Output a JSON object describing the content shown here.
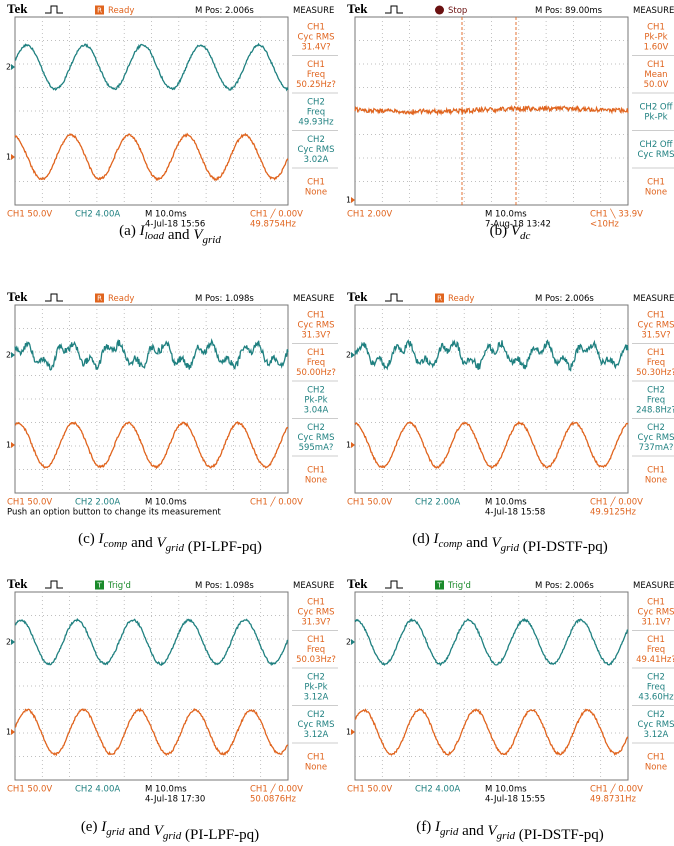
{
  "channel_colors": {
    "ch1": "#e0641e",
    "ch2": "#1f8080"
  },
  "panels": [
    {
      "header": {
        "brand": "Tek",
        "badge": "R",
        "status": "Ready",
        "status_color": "#e0641e",
        "position": "M Pos: 2.006s"
      },
      "markers": [
        "2",
        "1"
      ],
      "measure": {
        "title": "MEASURE",
        "items": [
          {
            "color": "#e0641e",
            "lines": [
              "CH1",
              "Cyc RMS",
              "31.4V?"
            ]
          },
          {
            "color": "#e0641e",
            "lines": [
              "CH1",
              "Freq",
              "50.25Hz?"
            ]
          },
          {
            "color": "#1f8080",
            "lines": [
              "CH2",
              "Freq",
              "49.93Hz"
            ]
          },
          {
            "color": "#1f8080",
            "lines": [
              "CH2",
              "Cyc RMS",
              "3.02A"
            ]
          },
          {
            "color": "#e0641e",
            "lines": [
              "CH1",
              "None"
            ]
          }
        ]
      },
      "footer": {
        "ch1": "CH1  50.0V",
        "ch2": "CH2  4.00A",
        "timebase": "M 10.0ms",
        "date": "4-Jul-18 15:56",
        "trigger": "CH1 ╱ 0.00V",
        "frequency": "49.8754Hz"
      },
      "caption": {
        "label": "(a)",
        "symbols": [
          {
            "letter": "I",
            "sub": "load"
          },
          {
            "letter": "V",
            "sub": "grid"
          }
        ],
        "joiner": "and"
      }
    },
    {
      "header": {
        "brand": "Tek",
        "status": "Stop",
        "status_color": "#6a1010",
        "position": "M Pos: 89.00ms"
      },
      "markers": [
        "1"
      ],
      "measure": {
        "title": "MEASURE",
        "items": [
          {
            "color": "#e0641e",
            "lines": [
              "CH1",
              "Pk-Pk",
              "1.60V"
            ]
          },
          {
            "color": "#e0641e",
            "lines": [
              "CH1",
              "Mean",
              "50.0V"
            ]
          },
          {
            "color": "#1f8080",
            "lines": [
              "CH2 Off",
              "Pk-Pk"
            ]
          },
          {
            "color": "#1f8080",
            "lines": [
              "CH2 Off",
              "Cyc RMS"
            ]
          },
          {
            "color": "#e0641e",
            "lines": [
              "CH1",
              "None"
            ]
          }
        ]
      },
      "footer": {
        "ch1": "CH1  2.00V",
        "timebase": "M 10.0ms",
        "date": "7-Aug-18 13:42",
        "trigger": "CH1 ╲ 33.9V",
        "frequency": "<10Hz"
      },
      "caption": {
        "label": "(b)",
        "symbols": [
          {
            "letter": "V",
            "sub": "dc"
          }
        ]
      }
    },
    {
      "header": {
        "brand": "Tek",
        "badge": "R",
        "status": "Ready",
        "status_color": "#e0641e",
        "position": "M Pos: 1.098s"
      },
      "markers": [
        "2",
        "1"
      ],
      "measure": {
        "title": "MEASURE",
        "items": [
          {
            "color": "#e0641e",
            "lines": [
              "CH1",
              "Cyc RMS",
              "31.3V?"
            ]
          },
          {
            "color": "#e0641e",
            "lines": [
              "CH1",
              "Freq",
              "50.00Hz?"
            ]
          },
          {
            "color": "#1f8080",
            "lines": [
              "CH2",
              "Pk-Pk",
              "3.04A"
            ]
          },
          {
            "color": "#1f8080",
            "lines": [
              "CH2",
              "Cyc RMS",
              "595mA?"
            ]
          },
          {
            "color": "#e0641e",
            "lines": [
              "CH1",
              "None"
            ]
          }
        ]
      },
      "footer": {
        "ch1": "CH1  50.0V",
        "ch2": "CH2  2.00A",
        "timebase": "M 10.0ms",
        "trigger": "CH1 ╱ 0.00V",
        "note": "Push an option button to change its measurement"
      },
      "caption": {
        "label": "(c)",
        "symbols": [
          {
            "letter": "I",
            "sub": "comp"
          },
          {
            "letter": "V",
            "sub": "grid"
          }
        ],
        "joiner": "and",
        "note": "(PI-LPF-pq)"
      }
    },
    {
      "header": {
        "brand": "Tek",
        "badge": "R",
        "status": "Ready",
        "status_color": "#e0641e",
        "position": "M Pos: 2.006s"
      },
      "markers": [
        "2",
        "1"
      ],
      "measure": {
        "title": "MEASURE",
        "items": [
          {
            "color": "#e0641e",
            "lines": [
              "CH1",
              "Cyc RMS",
              "31.5V?"
            ]
          },
          {
            "color": "#e0641e",
            "lines": [
              "CH1",
              "Freq",
              "50.30Hz?"
            ]
          },
          {
            "color": "#1f8080",
            "lines": [
              "CH2",
              "Freq",
              "248.8Hz?"
            ]
          },
          {
            "color": "#1f8080",
            "lines": [
              "CH2",
              "Cyc RMS",
              "737mA?"
            ]
          },
          {
            "color": "#e0641e",
            "lines": [
              "CH1",
              "None"
            ]
          }
        ]
      },
      "footer": {
        "ch1": "CH1  50.0V",
        "ch2": "CH2  2.00A",
        "timebase": "M 10.0ms",
        "date": "4-Jul-18 15:58",
        "trigger": "CH1 ╱ 0.00V",
        "frequency": "49.9125Hz"
      },
      "caption": {
        "label": "(d)",
        "symbols": [
          {
            "letter": "I",
            "sub": "comp"
          },
          {
            "letter": "V",
            "sub": "grid"
          }
        ],
        "joiner": "and",
        "note": "(PI-DSTF-pq)"
      }
    },
    {
      "header": {
        "brand": "Tek",
        "badge": "T",
        "status": "Trig'd",
        "status_color": "#1a8a2a",
        "position": "M Pos: 1.098s"
      },
      "markers": [
        "2",
        "1"
      ],
      "measure": {
        "title": "MEASURE",
        "items": [
          {
            "color": "#e0641e",
            "lines": [
              "CH1",
              "Cyc RMS",
              "31.3V?"
            ]
          },
          {
            "color": "#e0641e",
            "lines": [
              "CH1",
              "Freq",
              "50.03Hz?"
            ]
          },
          {
            "color": "#1f8080",
            "lines": [
              "CH2",
              "Pk-Pk",
              "3.12A"
            ]
          },
          {
            "color": "#1f8080",
            "lines": [
              "CH2",
              "Cyc RMS",
              "3.12A"
            ]
          },
          {
            "color": "#e0641e",
            "lines": [
              "CH1",
              "None"
            ]
          }
        ]
      },
      "footer": {
        "ch1": "CH1  50.0V",
        "ch2": "CH2  4.00A",
        "timebase": "M 10.0ms",
        "date": "4-Jul-18 17:30",
        "trigger": "CH1 ╱ 0.00V",
        "frequency": "50.0876Hz"
      },
      "caption": {
        "label": "(e)",
        "symbols": [
          {
            "letter": "I",
            "sub": "grid"
          },
          {
            "letter": "V",
            "sub": "grid"
          }
        ],
        "joiner": "and",
        "note": "(PI-LPF-pq)"
      }
    },
    {
      "header": {
        "brand": "Tek",
        "badge": "T",
        "status": "Trig'd",
        "status_color": "#1a8a2a",
        "position": "M Pos: 2.006s"
      },
      "markers": [
        "2",
        "1"
      ],
      "measure": {
        "title": "MEASURE",
        "items": [
          {
            "color": "#e0641e",
            "lines": [
              "CH1",
              "Cyc RMS",
              "31.1V?"
            ]
          },
          {
            "color": "#e0641e",
            "lines": [
              "CH1",
              "Freq",
              "49.41Hz?"
            ]
          },
          {
            "color": "#1f8080",
            "lines": [
              "CH2",
              "Freq",
              "43.60Hz"
            ]
          },
          {
            "color": "#1f8080",
            "lines": [
              "CH2",
              "Cyc RMS",
              "3.12A"
            ]
          },
          {
            "color": "#e0641e",
            "lines": [
              "CH1",
              "None"
            ]
          }
        ]
      },
      "footer": {
        "ch1": "CH1  50.0V",
        "ch2": "CH2  4.00A",
        "timebase": "M 10.0ms",
        "date": "4-Jul-18 15:55",
        "trigger": "CH1 ╱ 0.00V",
        "frequency": "49.8731Hz"
      },
      "caption": {
        "label": "(f)",
        "symbols": [
          {
            "letter": "I",
            "sub": "grid"
          },
          {
            "letter": "V",
            "sub": "grid"
          }
        ],
        "joiner": "and",
        "note": "(PI-DSTF-pq)"
      }
    }
  ]
}
